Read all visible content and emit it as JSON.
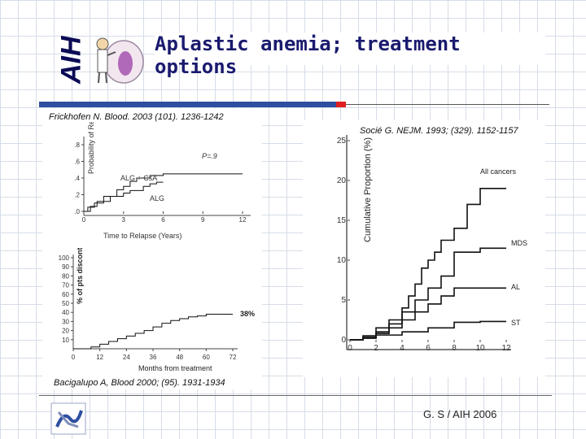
{
  "header": {
    "logo_text": "AIH",
    "title": "Aplastic anemia; treatment options"
  },
  "panel_left": {
    "citation_top": "Frickhofen N. Blood. 2003 (101). 1236-1242",
    "citation_bottom": "Bacigalupo A, Blood  2000; (95). 1931-1934"
  },
  "panel_right": {
    "citation": "Socié G. NEJM. 1993; (329). 1152-1157"
  },
  "footer": {
    "text": "G. S / AIH 2006"
  },
  "chart_data": [
    {
      "type": "line",
      "xlabel": "Time to Relapse (Years)",
      "ylabel": "Probability of Relapse",
      "x_ticks": [
        "0",
        "3",
        "6",
        "9",
        "12"
      ],
      "y_ticks": [
        ".0",
        ".2",
        ".4",
        ".6",
        ".8"
      ],
      "xlim": [
        0,
        12
      ],
      "ylim": [
        0,
        0.8
      ],
      "annotation": "P=.9",
      "series": [
        {
          "name": "ALG + CsA",
          "x": [
            0,
            0.3,
            0.8,
            1.5,
            2.5,
            3,
            3.5,
            4,
            5,
            6,
            8,
            12
          ],
          "y": [
            0,
            0.05,
            0.1,
            0.18,
            0.26,
            0.3,
            0.36,
            0.4,
            0.43,
            0.45,
            0.45,
            0.45
          ]
        },
        {
          "name": "ALG",
          "x": [
            0,
            0.5,
            1,
            2,
            3,
            3.5,
            4.5,
            5,
            5.5,
            6
          ],
          "y": [
            0,
            0.06,
            0.12,
            0.18,
            0.22,
            0.25,
            0.3,
            0.33,
            0.35,
            0.35
          ]
        }
      ]
    },
    {
      "type": "line",
      "xlabel": "Months from treatment",
      "ylabel": "% of pts discontinuing CyA",
      "x_ticks": [
        "0",
        "12",
        "24",
        "36",
        "48",
        "60",
        "72"
      ],
      "y_ticks": [
        "10",
        "20",
        "30",
        "40",
        "50",
        "60",
        "70",
        "80",
        "90",
        "100"
      ],
      "xlim": [
        0,
        72
      ],
      "ylim": [
        0,
        100
      ],
      "annotation": "38%",
      "series": [
        {
          "x": [
            0,
            4,
            8,
            12,
            16,
            20,
            24,
            28,
            32,
            36,
            40,
            44,
            48,
            52,
            56,
            60,
            66,
            72
          ],
          "y": [
            0,
            0,
            2,
            5,
            8,
            11,
            14,
            17,
            20,
            24,
            28,
            31,
            33,
            35,
            36,
            38,
            38,
            38
          ]
        }
      ]
    },
    {
      "type": "line",
      "ylabel": "Cumulative Proportion (%)",
      "x_ticks": [
        "0",
        "2",
        "4",
        "6",
        "8",
        "10",
        "12"
      ],
      "y_ticks": [
        "0",
        "5",
        "10",
        "15",
        "20",
        "25"
      ],
      "xlim": [
        0,
        12
      ],
      "ylim": [
        0,
        25
      ],
      "series": [
        {
          "name": "All cancers",
          "x": [
            0,
            1,
            2,
            3,
            4,
            4.5,
            5,
            5.5,
            6,
            6.5,
            7,
            8,
            9,
            10,
            12
          ],
          "y": [
            0,
            0.5,
            1.5,
            2.5,
            4,
            5.5,
            7,
            9,
            10,
            11,
            12.5,
            14,
            17,
            19,
            19
          ]
        },
        {
          "name": "MDS",
          "x": [
            0,
            1,
            2,
            3,
            4,
            5,
            6,
            7,
            8,
            10,
            12
          ],
          "y": [
            0,
            0.3,
            1,
            2,
            3.5,
            5,
            6.5,
            8,
            11,
            11.5,
            11.5
          ]
        },
        {
          "name": "AL",
          "x": [
            0,
            1,
            2,
            3,
            4,
            5,
            6,
            7,
            8,
            10,
            12
          ],
          "y": [
            0,
            0.2,
            0.8,
            1.5,
            2.5,
            3.5,
            4.5,
            5.5,
            6.5,
            6.5,
            6.5
          ]
        },
        {
          "name": "ST",
          "x": [
            0,
            1,
            2,
            4,
            6,
            8,
            10,
            12
          ],
          "y": [
            0,
            0.3,
            0.6,
            1,
            1.5,
            2.2,
            2.3,
            2.3
          ]
        }
      ]
    }
  ]
}
